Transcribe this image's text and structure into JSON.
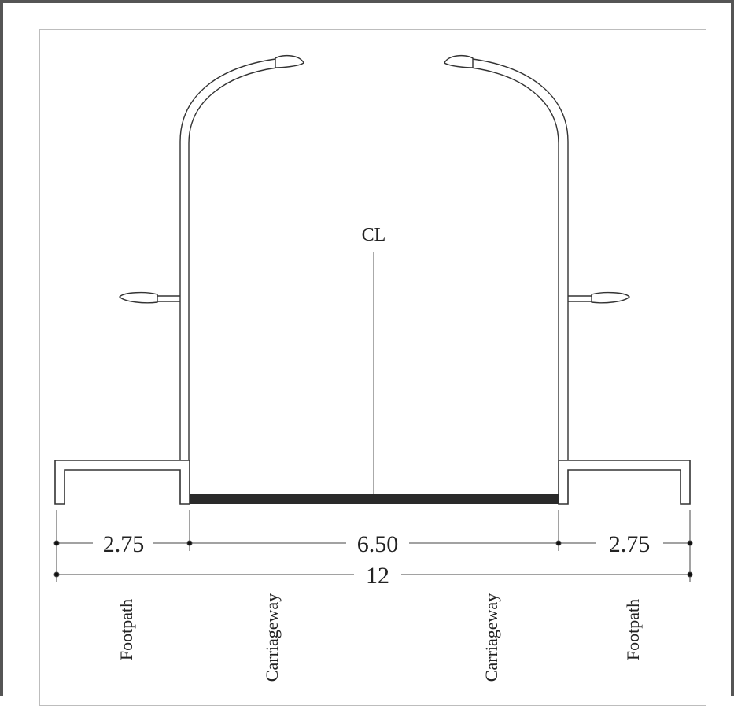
{
  "centerline_label": "CL",
  "dimensions": {
    "footpath_left": "2.75",
    "carriageway": "6.50",
    "footpath_right": "2.75",
    "total": "12"
  },
  "zones": {
    "footpath_left": "Footpath",
    "carriageway_left": "Carriageway",
    "carriageway_right": "Carriageway",
    "footpath_right": "Footpath"
  }
}
